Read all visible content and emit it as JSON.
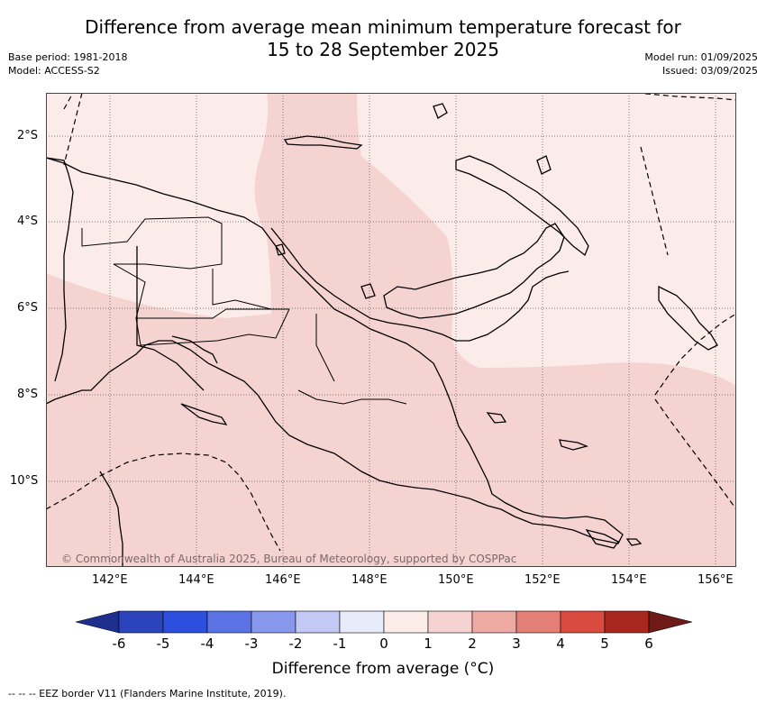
{
  "title_line1": "Difference from average mean minimum temperature forecast for",
  "title_line2": "15 to 28 September 2025",
  "meta_left": [
    "Base period: 1981-2018",
    "Model: ACCESS-S2"
  ],
  "meta_right": [
    "Model run: 01/09/2025",
    "Issued: 03/09/2025"
  ],
  "copyright": "© Commonwealth of Australia 2025, Bureau of Meteorology, supported by COSPPac",
  "lat_labels": [
    "2°S",
    "4°S",
    "6°S",
    "8°S",
    "10°S"
  ],
  "lon_labels": [
    "142°E",
    "144°E",
    "146°E",
    "148°E",
    "150°E",
    "152°E",
    "154°E",
    "156°E"
  ],
  "colorbar": {
    "ticks": [
      "-6",
      "-5",
      "-4",
      "-3",
      "-2",
      "-1",
      "0",
      "1",
      "2",
      "3",
      "4",
      "5",
      "6"
    ],
    "colors": [
      "#1e2f8f",
      "#2b44bb",
      "#2c4fde",
      "#5b72e5",
      "#8797ec",
      "#c2c9f4",
      "#e8ebfa",
      "#fbebe9",
      "#f5d3d0",
      "#eeaaa5",
      "#e47f78",
      "#d94b3f",
      "#aa2720",
      "#6e1a16"
    ],
    "title": "Difference from average (°C)"
  },
  "legend_note": "-- -- -- EEZ border V11 (Flanders Marine Institute, 2019).",
  "fill_colors": {
    "light": "#fbebe9",
    "medium": "#f5d3d0"
  }
}
